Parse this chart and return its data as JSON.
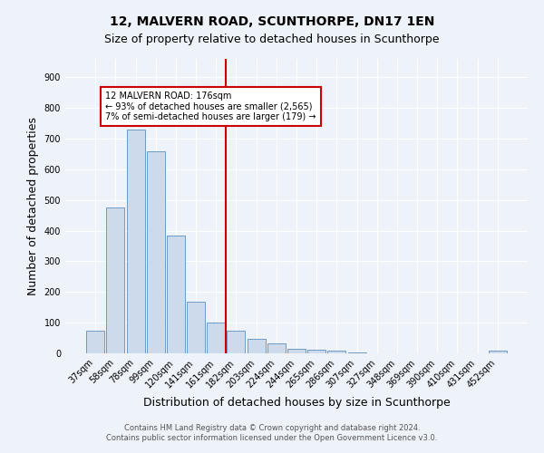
{
  "title": "12, MALVERN ROAD, SCUNTHORPE, DN17 1EN",
  "subtitle": "Size of property relative to detached houses in Scunthorpe",
  "xlabel": "Distribution of detached houses by size in Scunthorpe",
  "ylabel": "Number of detached properties",
  "categories": [
    "37sqm",
    "58sqm",
    "78sqm",
    "99sqm",
    "120sqm",
    "141sqm",
    "161sqm",
    "182sqm",
    "203sqm",
    "224sqm",
    "244sqm",
    "265sqm",
    "286sqm",
    "307sqm",
    "327sqm",
    "348sqm",
    "369sqm",
    "390sqm",
    "410sqm",
    "431sqm",
    "452sqm"
  ],
  "values": [
    75,
    475,
    730,
    660,
    385,
    167,
    100,
    75,
    46,
    32,
    15,
    12,
    8,
    4,
    0,
    0,
    0,
    0,
    0,
    0,
    8
  ],
  "bar_color": "#ccdaeb",
  "bar_edge_color": "#5a8fc0",
  "vline_x": 6.5,
  "vline_color": "#cc0000",
  "annotation_text": "12 MALVERN ROAD: 176sqm\n← 93% of detached houses are smaller (2,565)\n7% of semi-detached houses are larger (179) →",
  "annotation_box_color": "#ffffff",
  "annotation_box_edge": "#cc0000",
  "footer_line1": "Contains HM Land Registry data © Crown copyright and database right 2024.",
  "footer_line2": "Contains public sector information licensed under the Open Government Licence v3.0.",
  "ylim": [
    0,
    960
  ],
  "yticks": [
    0,
    100,
    200,
    300,
    400,
    500,
    600,
    700,
    800,
    900
  ],
  "background_color": "#eef2f9",
  "grid_color": "#ffffff",
  "title_fontsize": 10,
  "subtitle_fontsize": 9,
  "tick_fontsize": 7,
  "axis_label_fontsize": 9,
  "footer_fontsize": 6
}
